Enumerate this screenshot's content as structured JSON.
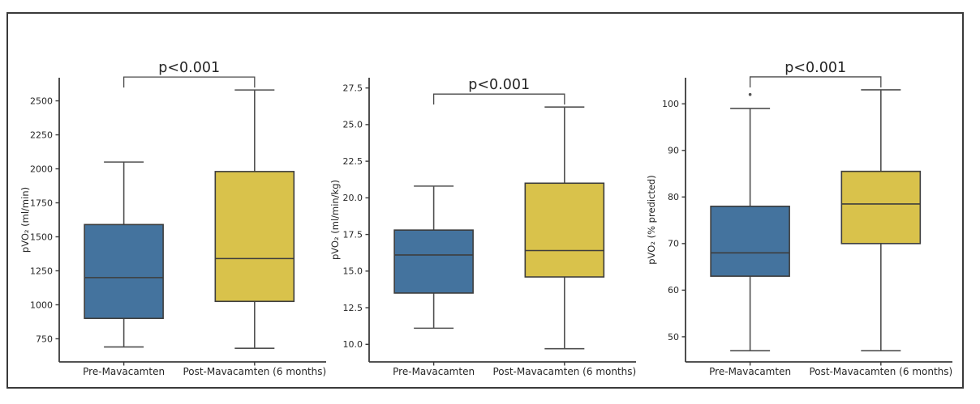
{
  "figure": {
    "background": "#ffffff",
    "border_color": "#3a3a3a",
    "styles": {
      "spine_color": "#3b3b3b",
      "box_edge_color": "#3d3d3d",
      "whisker_color": "#4f4f4f",
      "median_color": "#3d3d3d",
      "bracket_color": "#4a4a4a",
      "text_color": "#262626",
      "annotation_color": "#2b2b2b",
      "outlier_color": "#555555",
      "pre_box_color": "#44739e",
      "post_box_color": "#d9c24b"
    }
  },
  "chart_data": [
    {
      "type": "box",
      "title": "",
      "xlabel": "",
      "ylabel": "pVO₂ (ml/min)",
      "yticks": [
        "750",
        "1000",
        "1250",
        "1500",
        "1750",
        "2000",
        "2250",
        "2500"
      ],
      "ylim": [
        580,
        2670
      ],
      "grid": false,
      "legend": false,
      "annotation": "p<0.001",
      "categories": [
        "Pre-Mavacamten",
        "Post-Mavacamten (6 months)"
      ],
      "series": [
        {
          "name": "Pre-Mavacamten",
          "color": "#44739e",
          "whisker_low": 690,
          "q1": 900,
          "median": 1200,
          "q3": 1590,
          "whisker_high": 2050,
          "outliers": []
        },
        {
          "name": "Post-Mavacamten (6 months)",
          "color": "#d9c24b",
          "whisker_low": 680,
          "q1": 1025,
          "median": 1340,
          "q3": 1980,
          "whisker_high": 2580,
          "outliers": []
        }
      ]
    },
    {
      "type": "box",
      "title": "",
      "xlabel": "",
      "ylabel": "pVO₂ (ml/min/kg)",
      "yticks": [
        "10.0",
        "12.5",
        "15.0",
        "17.5",
        "20.0",
        "22.5",
        "25.0",
        "27.5"
      ],
      "ylim": [
        8.8,
        28.2
      ],
      "grid": false,
      "legend": false,
      "annotation": "p<0.001",
      "categories": [
        "Pre-Mavacamten",
        "Post-Mavacamten (6 months)"
      ],
      "series": [
        {
          "name": "Pre-Mavacamten",
          "color": "#44739e",
          "whisker_low": 11.1,
          "q1": 13.5,
          "median": 16.1,
          "q3": 17.8,
          "whisker_high": 20.8,
          "outliers": []
        },
        {
          "name": "Post-Mavacamten (6 months)",
          "color": "#d9c24b",
          "whisker_low": 9.7,
          "q1": 14.6,
          "median": 16.4,
          "q3": 21.0,
          "whisker_high": 26.2,
          "outliers": []
        }
      ]
    },
    {
      "type": "box",
      "title": "",
      "xlabel": "",
      "ylabel": "pVO₂ (% predicted)",
      "yticks": [
        "50",
        "60",
        "70",
        "80",
        "90",
        "100"
      ],
      "ylim": [
        44.6,
        105.6
      ],
      "grid": false,
      "legend": false,
      "annotation": "p<0.001",
      "categories": [
        "Pre-Mavacamten",
        "Post-Mavacamten (6 months)"
      ],
      "series": [
        {
          "name": "Pre-Mavacamten",
          "color": "#44739e",
          "whisker_low": 47,
          "q1": 63,
          "median": 68,
          "q3": 78,
          "whisker_high": 99,
          "outliers": [
            102
          ]
        },
        {
          "name": "Post-Mavacamten (6 months)",
          "color": "#d9c24b",
          "whisker_low": 47,
          "q1": 70,
          "median": 78.5,
          "q3": 85.5,
          "whisker_high": 103,
          "outliers": []
        }
      ]
    }
  ]
}
